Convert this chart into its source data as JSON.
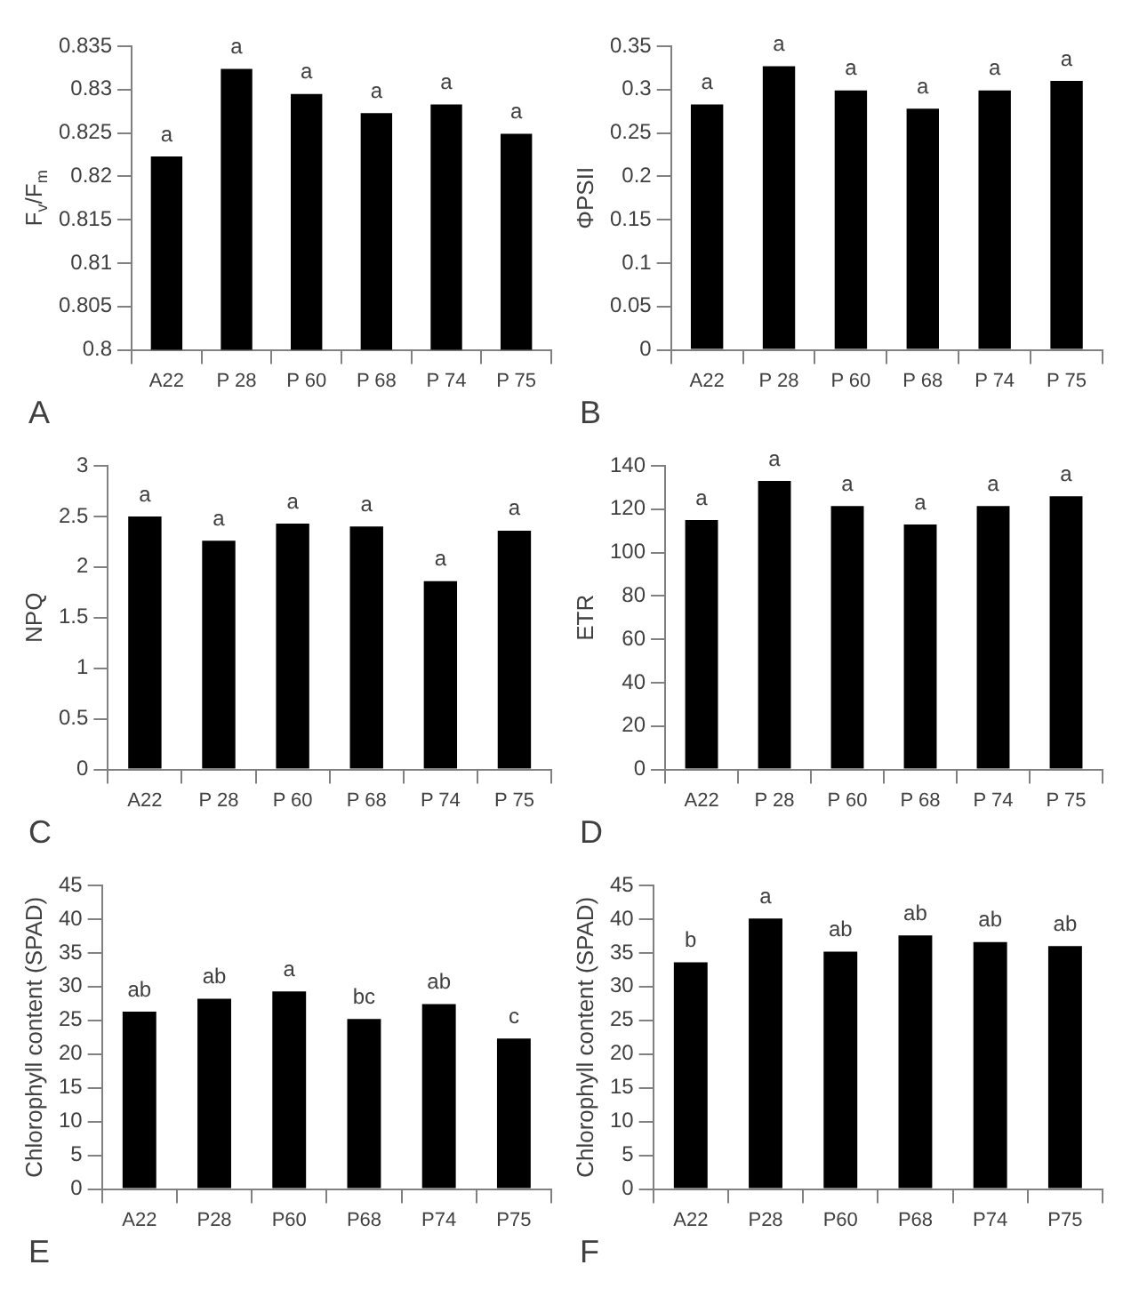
{
  "chart_data": [
    {
      "type": "bar",
      "ylabel": "F$_{v}$/F$_{m}$",
      "categories": [
        "A22",
        "P 28",
        "P 60",
        "P 68",
        "P 74",
        "P 75"
      ],
      "values": [
        0.8223,
        0.8324,
        0.8295,
        0.8273,
        0.8283,
        0.8249
      ],
      "color": "#000000",
      "ylim": [
        0.8,
        0.835
      ],
      "yticks": [
        0.8,
        0.805,
        0.81,
        0.815,
        0.82,
        0.825,
        0.83,
        0.835
      ],
      "annotations": [
        "A",
        {
          "text": "a",
          "x": "A22",
          "y": 0.8223
        },
        {
          "text": "a",
          "x": "P 28",
          "y": 0.8324
        },
        {
          "text": "a",
          "x": "P 60",
          "y": 0.8295
        },
        {
          "text": "a",
          "x": "P 68",
          "y": 0.8273
        },
        {
          "text": "a",
          "x": "P 74",
          "y": 0.8283
        },
        {
          "text": "a",
          "x": "P 75",
          "y": 0.8249
        }
      ]
    },
    {
      "type": "bar",
      "ylabel": "ΦPSII",
      "categories": [
        "A22",
        "P 28",
        "P 60",
        "P 68",
        "P 74",
        "P 75"
      ],
      "values": [
        0.283,
        0.327,
        0.299,
        0.278,
        0.299,
        0.31
      ],
      "color": "#000000",
      "ylim": [
        0,
        0.35
      ],
      "yticks": [
        0,
        0.05,
        0.1,
        0.15,
        0.2,
        0.25,
        0.3,
        0.35
      ],
      "annotations": [
        "B",
        {
          "text": "a",
          "x": "A22",
          "y": 0.283
        },
        {
          "text": "a",
          "x": "P 28",
          "y": 0.327
        },
        {
          "text": "a",
          "x": "P 60",
          "y": 0.299
        },
        {
          "text": "a",
          "x": "P 68",
          "y": 0.278
        },
        {
          "text": "a",
          "x": "P 74",
          "y": 0.299
        },
        {
          "text": "a",
          "x": "P 75",
          "y": 0.31
        }
      ]
    },
    {
      "type": "bar",
      "ylabel": "NPQ",
      "categories": [
        "A22",
        "P 28",
        "P 60",
        "P 68",
        "P 74",
        "P 75"
      ],
      "values": [
        2.5,
        2.26,
        2.43,
        2.4,
        1.86,
        2.36
      ],
      "color": "#000000",
      "ylim": [
        0,
        3
      ],
      "yticks": [
        0,
        0.5,
        1,
        1.5,
        2,
        2.5,
        3
      ],
      "annotations": [
        "C",
        {
          "text": "a",
          "x": "A22",
          "y": 2.5
        },
        {
          "text": "a",
          "x": "P 28",
          "y": 2.26
        },
        {
          "text": "a",
          "x": "P 60",
          "y": 2.43
        },
        {
          "text": "a",
          "x": "P 68",
          "y": 2.4
        },
        {
          "text": "a",
          "x": "P 74",
          "y": 1.86
        },
        {
          "text": "a",
          "x": "P 75",
          "y": 2.36
        }
      ]
    },
    {
      "type": "bar",
      "ylabel": "ETR",
      "categories": [
        "A22",
        "P 28",
        "P 60",
        "P 68",
        "P 74",
        "P 75"
      ],
      "values": [
        115,
        133,
        121.5,
        113,
        121.5,
        126
      ],
      "color": "#000000",
      "ylim": [
        0,
        140
      ],
      "yticks": [
        0,
        20,
        40,
        60,
        80,
        100,
        120,
        140
      ],
      "annotations": [
        "D",
        {
          "text": "a",
          "x": "A22",
          "y": 115
        },
        {
          "text": "a",
          "x": "P 28",
          "y": 133
        },
        {
          "text": "a",
          "x": "P 60",
          "y": 121.5
        },
        {
          "text": "a",
          "x": "P 68",
          "y": 113
        },
        {
          "text": "a",
          "x": "P 74",
          "y": 121.5
        },
        {
          "text": "a",
          "x": "P 75",
          "y": 126
        }
      ]
    },
    {
      "type": "bar",
      "ylabel": "Chlorophyll content (SPAD)",
      "categories": [
        "A22",
        "P28",
        "P60",
        "P68",
        "P74",
        "P75"
      ],
      "values": [
        26.3,
        28.2,
        29.3,
        25.2,
        27.4,
        22.3
      ],
      "color": "#000000",
      "ylim": [
        0,
        45
      ],
      "yticks": [
        0,
        5,
        10,
        15,
        20,
        25,
        30,
        35,
        40,
        45
      ],
      "annotations": [
        "E",
        {
          "text": "ab",
          "x": "A22",
          "y": 26.3
        },
        {
          "text": "ab",
          "x": "P28",
          "y": 28.2
        },
        {
          "text": "a",
          "x": "P60",
          "y": 29.3
        },
        {
          "text": "bc",
          "x": "P68",
          "y": 25.2
        },
        {
          "text": "ab",
          "x": "P74",
          "y": 27.4
        },
        {
          "text": "c",
          "x": "P75",
          "y": 22.3
        }
      ]
    },
    {
      "type": "bar",
      "ylabel": "Chlorophyll content (SPAD)",
      "categories": [
        "A22",
        "P28",
        "P60",
        "P68",
        "P74",
        "P75"
      ],
      "values": [
        33.6,
        40.1,
        35.2,
        37.6,
        36.6,
        36.0
      ],
      "color": "#000000",
      "ylim": [
        0,
        45
      ],
      "yticks": [
        0,
        5,
        10,
        15,
        20,
        25,
        30,
        35,
        40,
        45
      ],
      "annotations": [
        "F",
        {
          "text": "b",
          "x": "A22",
          "y": 33.6
        },
        {
          "text": "a",
          "x": "P28",
          "y": 40.1
        },
        {
          "text": "ab",
          "x": "P60",
          "y": 35.2
        },
        {
          "text": "ab",
          "x": "P68",
          "y": 37.6
        },
        {
          "text": "ab",
          "x": "P74",
          "y": 36.6
        },
        {
          "text": "ab",
          "x": "P75",
          "y": 36.0
        }
      ]
    }
  ]
}
